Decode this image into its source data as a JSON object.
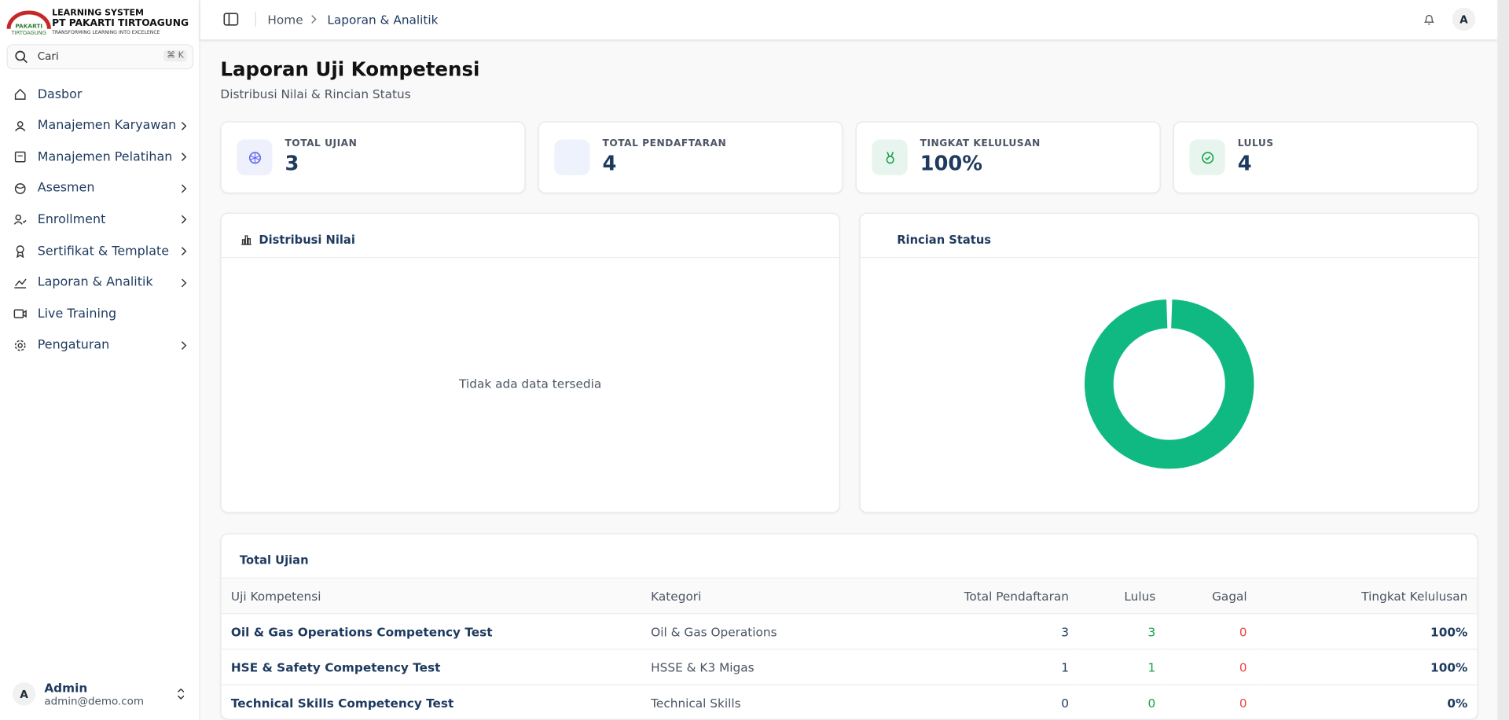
{
  "sidebar": {
    "logo": {
      "line1": "LEARNING SYSTEM",
      "line2": "PT PAKARTI TIRTOAGUNG",
      "line3": "TRANSFORMING LEARNING INTO EXCELENCE",
      "mark1": "PAKARTI",
      "mark2": "TIRTOAGUNG"
    },
    "search": {
      "placeholder": "Cari",
      "shortcut": "⌘ K"
    },
    "menu": [
      "Dasbor",
      "Manajemen Karyawan",
      "Manajemen Pelatihan",
      "Asesmen",
      "Enrollment",
      "Sertifikat & Template",
      "Laporan & Analitik",
      "Live Training",
      "Pengaturan"
    ],
    "user": {
      "initial": "A",
      "name": "Admin",
      "email": "admin@demo.com"
    }
  },
  "header": {
    "breadcrumb": [
      "Home",
      "Laporan & Analitik"
    ],
    "avatar": "A"
  },
  "page": {
    "title": "Laporan Uji Kompetensi",
    "subtitle": "Distribusi Nilai & Rincian Status"
  },
  "stats": [
    {
      "label": "TOTAL UJIAN",
      "value": "3"
    },
    {
      "label": "TOTAL PENDAFTARAN",
      "value": "4"
    },
    {
      "label": "TINGKAT KELULUSAN",
      "value": "100%"
    },
    {
      "label": "LULUS",
      "value": "4"
    }
  ],
  "panels": {
    "distribution": {
      "title": "Distribusi Nilai",
      "empty": "Tidak ada data tersedia"
    },
    "status": {
      "title": "Rincian Status"
    }
  },
  "table": {
    "title": "Total Ujian",
    "columns": [
      "Uji Kompetensi",
      "Kategori",
      "Total Pendaftaran",
      "Lulus",
      "Gagal",
      "Tingkat Kelulusan"
    ],
    "rows": [
      [
        "Oil & Gas Operations Competency Test",
        "Oil & Gas Operations",
        "3",
        "3",
        "0",
        "100%"
      ],
      [
        "HSE & Safety Competency Test",
        "HSSE & K3 Migas",
        "1",
        "1",
        "0",
        "100%"
      ],
      [
        "Technical Skills Competency Test",
        "Technical Skills",
        "0",
        "0",
        "0",
        "0%"
      ]
    ]
  }
}
